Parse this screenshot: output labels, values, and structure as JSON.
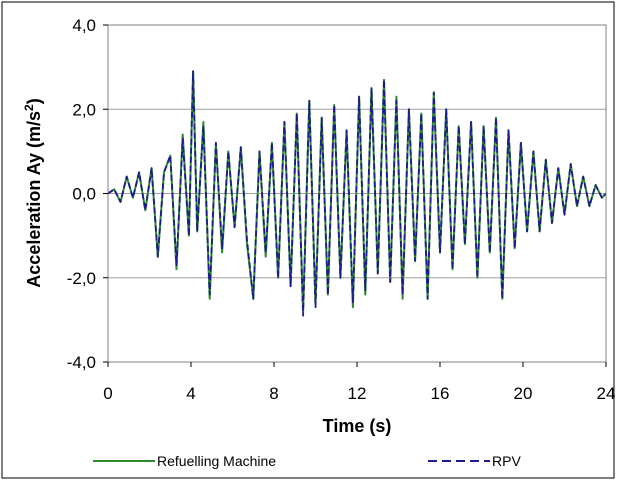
{
  "chart_data": {
    "type": "line",
    "title": "",
    "xlabel": "Time (s)",
    "ylabel_main": "Acceleration Ay (m/s",
    "ylabel_sup": "2",
    "ylabel_end": ")",
    "xlim": [
      0,
      24
    ],
    "ylim": [
      -4,
      4
    ],
    "xticks": [
      0,
      4,
      8,
      12,
      16,
      20,
      24
    ],
    "xtick_labels": [
      "0",
      "4",
      "8",
      "12",
      "16",
      "20",
      "24"
    ],
    "yticks": [
      -4,
      -2,
      0,
      2,
      4
    ],
    "ytick_labels": [
      "-4,0",
      "-2,0",
      "0,0",
      "2,0",
      "4,0"
    ],
    "grid": "horizontal",
    "legend_position": "bottom",
    "legend": [
      "Refuelling Machine",
      "RPV"
    ],
    "series": [
      {
        "name": "Refuelling Machine",
        "color": "#2e8b2e",
        "style": "solid",
        "x": [
          0,
          0.3,
          0.6,
          0.9,
          1.2,
          1.5,
          1.8,
          2.1,
          2.4,
          2.7,
          3.0,
          3.3,
          3.6,
          3.9,
          4.1,
          4.3,
          4.6,
          4.9,
          5.2,
          5.5,
          5.8,
          6.1,
          6.4,
          6.7,
          7.0,
          7.3,
          7.6,
          7.9,
          8.2,
          8.5,
          8.8,
          9.1,
          9.4,
          9.7,
          10.0,
          10.3,
          10.6,
          10.9,
          11.2,
          11.5,
          11.8,
          12.1,
          12.4,
          12.7,
          13.0,
          13.3,
          13.6,
          13.9,
          14.2,
          14.5,
          14.8,
          15.1,
          15.4,
          15.7,
          16.0,
          16.3,
          16.6,
          16.9,
          17.2,
          17.5,
          17.8,
          18.1,
          18.4,
          18.7,
          19.0,
          19.3,
          19.6,
          19.9,
          20.2,
          20.5,
          20.8,
          21.1,
          21.4,
          21.7,
          22.0,
          22.3,
          22.6,
          22.9,
          23.2,
          23.5,
          23.8,
          24.0
        ],
        "y": [
          0.0,
          0.1,
          -0.2,
          0.4,
          -0.1,
          0.5,
          -0.4,
          0.6,
          -1.5,
          0.5,
          0.9,
          -1.8,
          1.4,
          -1.0,
          2.9,
          -0.9,
          1.7,
          -2.5,
          1.2,
          -1.4,
          1.0,
          -0.8,
          1.1,
          -1.2,
          -2.5,
          1.0,
          -1.5,
          1.2,
          -2.0,
          1.7,
          -2.2,
          1.9,
          -2.8,
          2.2,
          -2.6,
          1.8,
          -2.4,
          2.1,
          -2.0,
          1.5,
          -2.7,
          2.3,
          -2.4,
          2.5,
          -1.9,
          2.7,
          -2.1,
          2.3,
          -2.5,
          2.0,
          -1.6,
          1.9,
          -2.5,
          2.4,
          -1.4,
          2.0,
          -1.8,
          1.6,
          -1.2,
          1.7,
          -2.0,
          1.6,
          -1.4,
          1.8,
          -2.5,
          1.5,
          -1.3,
          1.2,
          -0.9,
          1.0,
          -0.9,
          0.8,
          -0.7,
          0.6,
          -0.5,
          0.7,
          -0.3,
          0.4,
          -0.3,
          0.2,
          -0.1,
          0.0
        ]
      },
      {
        "name": "RPV",
        "color": "#1c1c8c",
        "style": "dashed",
        "x": [
          0,
          0.3,
          0.6,
          0.9,
          1.2,
          1.5,
          1.8,
          2.1,
          2.4,
          2.7,
          3.0,
          3.3,
          3.6,
          3.9,
          4.1,
          4.3,
          4.6,
          4.9,
          5.2,
          5.5,
          5.8,
          6.1,
          6.4,
          6.7,
          7.0,
          7.3,
          7.6,
          7.9,
          8.2,
          8.5,
          8.8,
          9.1,
          9.4,
          9.7,
          10.0,
          10.3,
          10.6,
          10.9,
          11.2,
          11.5,
          11.8,
          12.1,
          12.4,
          12.7,
          13.0,
          13.3,
          13.6,
          13.9,
          14.2,
          14.5,
          14.8,
          15.1,
          15.4,
          15.7,
          16.0,
          16.3,
          16.6,
          16.9,
          17.2,
          17.5,
          17.8,
          18.1,
          18.4,
          18.7,
          19.0,
          19.3,
          19.6,
          19.9,
          20.2,
          20.5,
          20.8,
          21.1,
          21.4,
          21.7,
          22.0,
          22.3,
          22.6,
          22.9,
          23.2,
          23.5,
          23.8,
          24.0
        ],
        "y": [
          0.0,
          0.1,
          -0.2,
          0.4,
          -0.1,
          0.5,
          -0.4,
          0.6,
          -1.5,
          0.5,
          0.9,
          -1.7,
          1.3,
          -1.0,
          2.9,
          -0.9,
          1.6,
          -2.4,
          1.2,
          -1.3,
          1.0,
          -0.8,
          1.1,
          -1.1,
          -2.5,
          1.0,
          -1.4,
          1.2,
          -2.0,
          1.7,
          -2.2,
          1.9,
          -2.9,
          2.2,
          -2.7,
          1.8,
          -2.4,
          2.1,
          -2.0,
          1.5,
          -2.6,
          2.3,
          -2.3,
          2.5,
          -1.9,
          2.7,
          -2.1,
          2.2,
          -2.4,
          2.0,
          -1.6,
          1.9,
          -2.5,
          2.4,
          -1.4,
          2.0,
          -1.8,
          1.6,
          -1.2,
          1.7,
          -2.0,
          1.6,
          -1.4,
          1.8,
          -2.5,
          1.5,
          -1.3,
          1.2,
          -0.9,
          1.0,
          -0.9,
          0.8,
          -0.7,
          0.6,
          -0.5,
          0.7,
          -0.3,
          0.4,
          -0.3,
          0.2,
          -0.1,
          0.0
        ]
      }
    ]
  }
}
